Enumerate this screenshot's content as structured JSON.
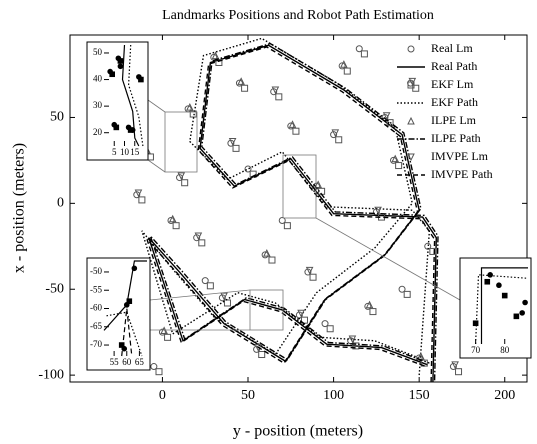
{
  "chart_data": [
    {
      "type": "line",
      "title": "Landmarks Positions and Robot Path Estimation",
      "xlabel": "y - position (meters)",
      "ylabel": "x - position (meters)",
      "xlim": [
        -54,
        213
      ],
      "ylim": [
        -104,
        98
      ],
      "xticks": [
        0,
        50,
        100,
        150,
        200
      ],
      "yticks": [
        -100,
        -50,
        0,
        50
      ],
      "legend": "upper right",
      "series": [
        {
          "name": "Real Lm",
          "color": "#555555",
          "marker": "o",
          "linestyle": "none",
          "x": [
            -20,
            -10,
            5,
            15,
            30,
            45,
            60,
            75,
            90,
            105,
            120,
            135,
            150,
            -25,
            0,
            20,
            40,
            55,
            80,
            100,
            125,
            145,
            170,
            -15,
            10,
            35,
            65,
            85,
            110,
            130,
            155,
            185,
            -5,
            25,
            50,
            70,
            95,
            115,
            140,
            200
          ],
          "values": [
            60,
            30,
            -10,
            55,
            85,
            70,
            -30,
            45,
            10,
            80,
            -60,
            25,
            -90,
            -45,
            -75,
            -20,
            35,
            -85,
            -65,
            40,
            -5,
            70,
            -95,
            5,
            15,
            -55,
            65,
            -40,
            -80,
            50,
            -25,
            -60,
            -95,
            -45,
            20,
            -10,
            -70,
            90,
            -50,
            -65
          ]
        },
        {
          "name": "Real Path",
          "color": "#000000",
          "marker": "none",
          "linestyle": "-",
          "x": [
            158,
            160,
            152,
            100,
            75,
            42,
            22,
            28,
            62,
            106,
            140,
            150,
            130,
            95,
            72,
            36,
            10,
            -8,
            12,
            48,
            70,
            96,
            128,
            155
          ],
          "values": [
            -104,
            -20,
            -8,
            -6,
            26,
            10,
            32,
            82,
            92,
            66,
            40,
            -4,
            -30,
            -56,
            -92,
            -70,
            -40,
            -20,
            -80,
            -56,
            -62,
            -82,
            -84,
            -94
          ]
        },
        {
          "name": "EKF Lm",
          "color": "#555555",
          "marker": "s",
          "linestyle": "none",
          "x": [
            -16,
            -7,
            8,
            18,
            33,
            48,
            64,
            78,
            93,
            108,
            123,
            138,
            153,
            -22,
            3,
            23,
            43,
            58,
            83,
            103,
            128,
            148,
            173,
            -12,
            13,
            38,
            68,
            88,
            113,
            133,
            158,
            188,
            -2,
            28,
            53,
            73,
            98,
            118,
            143,
            203
          ],
          "values": [
            57,
            27,
            -13,
            52,
            82,
            67,
            -33,
            42,
            7,
            77,
            -63,
            22,
            -93,
            -48,
            -78,
            -23,
            32,
            -88,
            -68,
            37,
            -8,
            67,
            -98,
            2,
            12,
            -58,
            62,
            -43,
            -83,
            47,
            -28,
            -63,
            -98,
            -48,
            17,
            -13,
            -73,
            87,
            -53,
            -68
          ]
        },
        {
          "name": "EKF Path",
          "color": "#000000",
          "marker": "none",
          "linestyle": ":",
          "x": [
            150,
            156,
            146,
            96,
            70,
            38,
            16,
            24,
            58,
            102,
            136,
            146,
            124,
            90,
            66,
            30,
            4,
            -12,
            6,
            44,
            66,
            92,
            124,
            150
          ],
          "values": [
            -100,
            -16,
            -4,
            -2,
            30,
            14,
            36,
            86,
            96,
            70,
            44,
            0,
            -26,
            -52,
            -88,
            -66,
            -36,
            -16,
            -76,
            -52,
            -58,
            -78,
            -80,
            -90
          ]
        },
        {
          "name": "ILPE Lm",
          "color": "#555555",
          "marker": "^",
          "linestyle": "none",
          "x": [
            -19,
            -9,
            6,
            16,
            31,
            46,
            61,
            76,
            91,
            106,
            121,
            136,
            151,
            -24,
            1
          ],
          "values": [
            61,
            31,
            -9,
            56,
            86,
            71,
            -29,
            46,
            11,
            81,
            -59,
            26,
            -89,
            -44,
            -74
          ]
        },
        {
          "name": "ILPE Path",
          "color": "#000000",
          "marker": "none",
          "linestyle": "-.",
          "x": [
            159,
            161,
            153,
            101,
            76,
            43,
            23,
            29,
            63,
            107,
            141,
            151,
            131,
            96,
            73,
            37,
            11,
            -7,
            13,
            49,
            71,
            97,
            129,
            156
          ],
          "values": [
            -103,
            -19,
            -7,
            -5,
            27,
            11,
            33,
            83,
            93,
            67,
            41,
            -3,
            -29,
            -55,
            -91,
            -69,
            -39,
            -19,
            -79,
            -55,
            -61,
            -81,
            -83,
            -93
          ]
        },
        {
          "name": "IMVPE Lm",
          "color": "#555555",
          "marker": "v",
          "linestyle": "none",
          "x": [
            21,
            41,
            56,
            81,
            101,
            126,
            146,
            171,
            -14,
            11,
            36,
            66,
            86,
            111,
            131
          ],
          "values": [
            -19,
            36,
            -84,
            -64,
            41,
            -4,
            71,
            -94,
            6,
            16,
            -54,
            66,
            -39,
            -79,
            51
          ]
        },
        {
          "name": "IMVPE Path",
          "color": "#000000",
          "marker": "none",
          "linestyle": "--",
          "x": [
            157,
            159,
            151,
            99,
            74,
            41,
            21,
            27,
            61,
            105,
            139,
            149,
            129,
            94,
            71,
            35,
            9,
            -9,
            11,
            47,
            69,
            95,
            127,
            154
          ],
          "values": [
            -104,
            -21,
            -9,
            -7,
            25,
            9,
            31,
            81,
            91,
            65,
            39,
            -5,
            -31,
            -57,
            -93,
            -71,
            -41,
            -21,
            -81,
            -57,
            -63,
            -83,
            -85,
            -95
          ]
        }
      ]
    },
    {
      "type": "line",
      "xlim": [
        0,
        20
      ],
      "ylim": [
        15,
        53
      ],
      "xticks": [
        5,
        10,
        15
      ],
      "yticks": [
        20,
        30,
        40,
        50
      ],
      "series": [
        {
          "color": "#000000",
          "marker": "o",
          "linestyle": "none",
          "x": [
            3,
            7,
            5,
            12,
            17,
            8,
            14
          ],
          "values": [
            43,
            48,
            23,
            22,
            41,
            45,
            21
          ]
        },
        {
          "color": "#000000",
          "marker": "s",
          "linestyle": "none",
          "x": [
            4,
            8,
            6,
            13,
            18
          ],
          "values": [
            42,
            47,
            22,
            21,
            40
          ]
        },
        {
          "color": "#000000",
          "marker": "none",
          "linestyle": "-",
          "x": [
            10,
            9,
            14,
            15,
            17
          ],
          "values": [
            53,
            40,
            28,
            18,
            15
          ]
        },
        {
          "color": "#000000",
          "marker": "none",
          "linestyle": ":",
          "x": [
            13,
            12,
            17,
            19
          ],
          "values": [
            53,
            38,
            26,
            15
          ]
        }
      ]
    },
    {
      "type": "line",
      "xlim": [
        51,
        68
      ],
      "ylim": [
        -73,
        -47
      ],
      "xticks": [
        55,
        60,
        65
      ],
      "yticks": [
        -50,
        -55,
        -60,
        -65,
        -70
      ],
      "series": [
        {
          "color": "#000000",
          "marker": "o",
          "linestyle": "none",
          "x": [
            59,
            60,
            63
          ],
          "values": [
            -71,
            -59,
            -49
          ]
        },
        {
          "color": "#000000",
          "marker": "s",
          "linestyle": "none",
          "x": [
            58,
            61
          ],
          "values": [
            -70,
            -58
          ]
        },
        {
          "color": "#000000",
          "marker": "none",
          "linestyle": "-",
          "x": [
            51,
            60,
            63,
            68
          ],
          "values": [
            -66,
            -59,
            -47,
            -47
          ]
        },
        {
          "color": "#000000",
          "marker": "none",
          "linestyle": "--",
          "x": [
            58,
            60,
            62
          ],
          "values": [
            -73,
            -60,
            -73
          ]
        },
        {
          "color": "#000000",
          "marker": "none",
          "linestyle": ":",
          "x": [
            52,
            60,
            66
          ],
          "values": [
            -62,
            -61,
            -73
          ]
        }
      ]
    },
    {
      "type": "line",
      "xlim": [
        66,
        88
      ],
      "ylim": [
        -72,
        -48
      ],
      "xticks": [
        70,
        80
      ],
      "series": [
        {
          "color": "#000000",
          "marker": "o",
          "linestyle": "none",
          "x": [
            75,
            78,
            86,
            87
          ],
          "values": [
            -52,
            -55,
            -63,
            -60
          ]
        },
        {
          "color": "#000000",
          "marker": "s",
          "linestyle": "none",
          "x": [
            74,
            80,
            84,
            70
          ],
          "values": [
            -54,
            -58,
            -64,
            -66
          ]
        },
        {
          "color": "#000000",
          "marker": "none",
          "linestyle": "-",
          "x": [
            72,
            72,
            88
          ],
          "values": [
            -72,
            -50,
            -50
          ]
        },
        {
          "color": "#000000",
          "marker": "none",
          "linestyle": ":",
          "x": [
            70,
            71,
            88
          ],
          "values": [
            -72,
            -52,
            -53
          ]
        }
      ]
    }
  ]
}
